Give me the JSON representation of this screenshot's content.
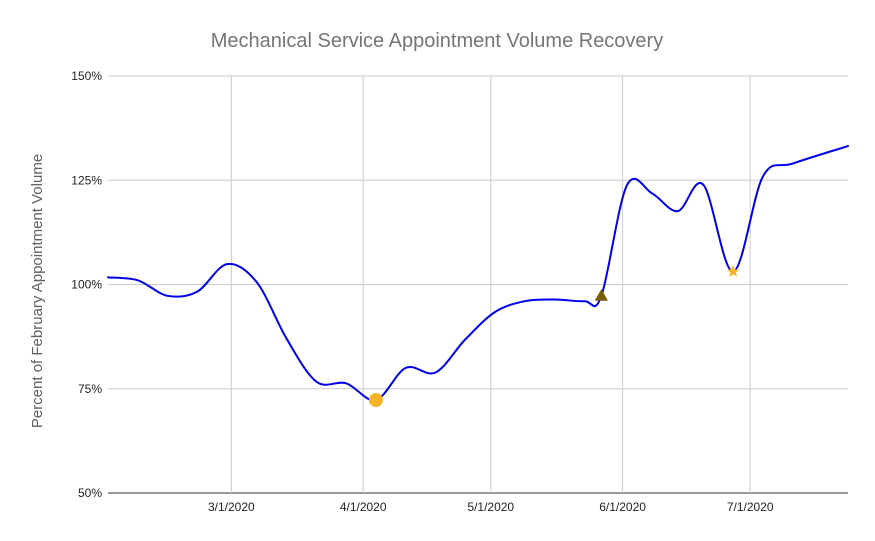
{
  "chart_data": {
    "type": "line",
    "title": "Mechanical Service Appointment Volume Recovery",
    "ylabel": "Percent of February Appointment Volume",
    "xlabel": "",
    "xlim": [
      "2020-02-01",
      "2020-07-24"
    ],
    "ylim": [
      50,
      150
    ],
    "x_ticks": [
      {
        "date": "2020-03-01",
        "label": "3/1/2020"
      },
      {
        "date": "2020-04-01",
        "label": "4/1/2020"
      },
      {
        "date": "2020-05-01",
        "label": "5/1/2020"
      },
      {
        "date": "2020-06-01",
        "label": "6/1/2020"
      },
      {
        "date": "2020-07-01",
        "label": "7/1/2020"
      }
    ],
    "y_ticks": [
      {
        "value": 50,
        "label": "50%"
      },
      {
        "value": 75,
        "label": "75%"
      },
      {
        "value": 100,
        "label": "100%"
      },
      {
        "value": 125,
        "label": "125%"
      },
      {
        "value": 150,
        "label": "150%"
      }
    ],
    "grid": true,
    "legend": "none",
    "series": [
      {
        "color": "#0000ee",
        "points": [
          [
            "2020-02-01",
            101.7
          ],
          [
            "2020-02-08",
            101.0
          ],
          [
            "2020-02-15",
            97.3
          ],
          [
            "2020-02-22",
            98.3
          ],
          [
            "2020-02-29",
            104.9
          ],
          [
            "2020-03-07",
            100.5
          ],
          [
            "2020-03-14",
            87.0
          ],
          [
            "2020-03-21",
            76.7
          ],
          [
            "2020-03-28",
            76.3
          ],
          [
            "2020-04-04",
            72.3
          ],
          [
            "2020-04-11",
            80.0
          ],
          [
            "2020-04-18",
            78.9
          ],
          [
            "2020-04-25",
            86.8
          ],
          [
            "2020-05-02",
            93.4
          ],
          [
            "2020-05-09",
            96.0
          ],
          [
            "2020-05-16",
            96.4
          ],
          [
            "2020-05-23",
            96.0
          ],
          [
            "2020-05-27",
            97.2
          ],
          [
            "2020-06-02",
            123.8
          ],
          [
            "2020-06-08",
            121.8
          ],
          [
            "2020-06-14",
            117.6
          ],
          [
            "2020-06-20",
            123.9
          ],
          [
            "2020-06-27",
            103.1
          ],
          [
            "2020-07-04",
            125.9
          ],
          [
            "2020-07-11",
            129.0
          ],
          [
            "2020-07-24",
            133.2
          ]
        ]
      }
    ],
    "markers": [
      {
        "shape": "circle",
        "date": "2020-04-04",
        "value": 72.3,
        "color": "#f6b426"
      },
      {
        "shape": "triangle",
        "date": "2020-05-27",
        "value": 97.2,
        "color": "#7a5c00"
      },
      {
        "shape": "star",
        "date": "2020-06-27",
        "value": 103.1,
        "color": "#f6b426"
      }
    ]
  }
}
